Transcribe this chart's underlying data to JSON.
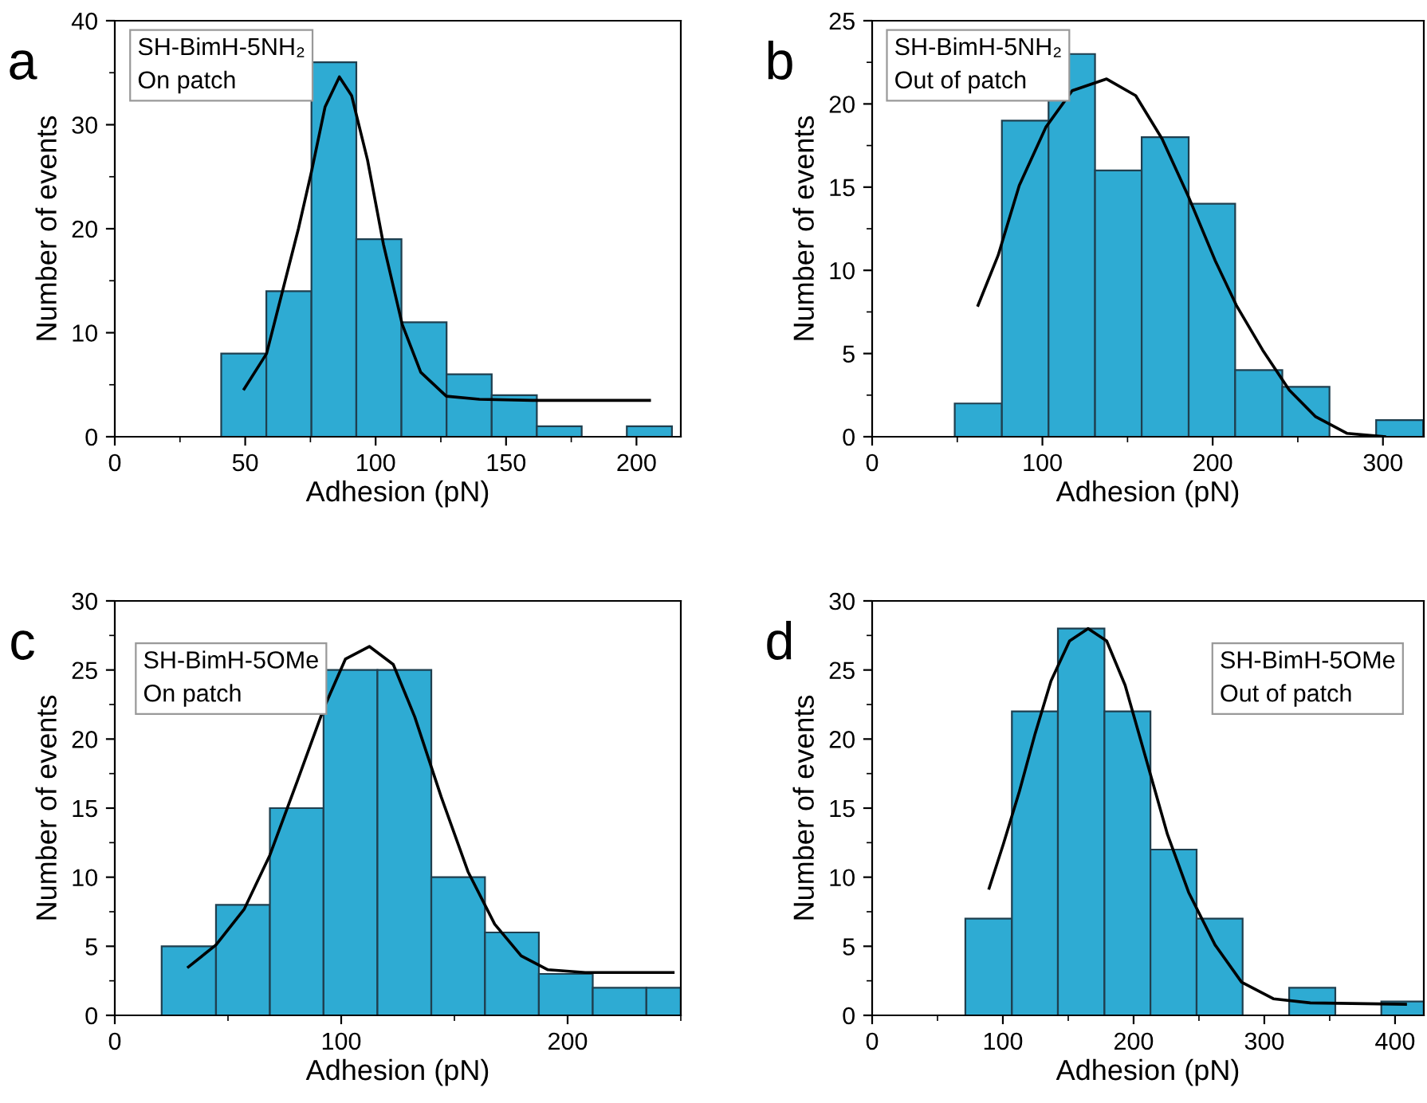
{
  "chart_data": [
    {
      "type": "histogram",
      "title": "a",
      "xlabel": "Adhesion (pN)",
      "ylabel": "Number of events",
      "annotations": [
        "SH-BimH-5NH₂\nOn patch"
      ],
      "bins": [
        40.8,
        58.1,
        75.4,
        92.6,
        109.9,
        127.2,
        144.5,
        161.8,
        179.0,
        196.3,
        213.6
      ],
      "values": [
        8,
        14,
        36,
        19,
        11,
        6,
        4,
        1,
        0,
        1
      ],
      "color": "#2eabd3",
      "series": [
        {
          "type": "line",
          "color": "#000000",
          "x": [
            49.6,
            58.2,
            64.3,
            70.4,
            75.5,
            80.6,
            86.1,
            90.8,
            96.9,
            103.0,
            110.2,
            117.3,
            127.1,
            139.8,
            160.2,
            205.0
          ],
          "values": [
            4.6,
            8.0,
            14.0,
            20.0,
            25.6,
            31.7,
            34.6,
            32.8,
            26.6,
            18.5,
            10.8,
            6.2,
            3.9,
            3.6,
            3.5,
            3.5
          ]
        }
      ],
      "xlim": [
        0,
        217
      ],
      "ylim": [
        0,
        40
      ],
      "xticks": [
        0,
        50,
        100,
        150,
        200
      ],
      "yticks": [
        0,
        10,
        20,
        30,
        40
      ],
      "grid": false,
      "legend": false
    },
    {
      "type": "histogram",
      "title": "b",
      "xlabel": "Adhesion (pN)",
      "ylabel": "Number of events",
      "annotations": [
        "SH-BimH-5NH₂\nOut of patch"
      ],
      "bins": [
        48.5,
        76.2,
        103.6,
        130.9,
        158.3,
        185.9,
        213.2,
        240.9,
        268.6,
        296.0,
        323.6
      ],
      "values": [
        2,
        19,
        23,
        16,
        18,
        14,
        4,
        3,
        0,
        1
      ],
      "color": "#2eabd3",
      "series": [
        {
          "type": "line",
          "color": "#000000",
          "x": [
            62.2,
            74.0,
            86.4,
            102.0,
            117.5,
            137.7,
            154.8,
            170.3,
            185.9,
            201.4,
            213.9,
            229.4,
            245.0,
            260.5,
            279.0,
            301.0
          ],
          "values": [
            7.9,
            10.9,
            15.1,
            18.6,
            20.8,
            21.5,
            20.5,
            17.9,
            14.4,
            10.6,
            7.9,
            5.2,
            2.8,
            1.2,
            0.2,
            0
          ]
        }
      ],
      "xlim": [
        0,
        324
      ],
      "ylim": [
        0,
        25
      ],
      "xticks": [
        0,
        100,
        200,
        300
      ],
      "yticks": [
        0,
        5,
        10,
        15,
        20,
        25
      ],
      "grid": false,
      "legend": false
    },
    {
      "type": "histogram",
      "title": "c",
      "xlabel": "Adhesion (pN)",
      "ylabel": "Number of events",
      "annotations": [
        "SH-BimH-5OMe\nOn patch"
      ],
      "bins": [
        20.7,
        44.7,
        68.5,
        92.2,
        116.0,
        139.8,
        163.5,
        187.3,
        211.1,
        234.8,
        250.0
      ],
      "values": [
        5,
        8,
        15,
        25,
        25,
        10,
        6,
        3,
        2,
        2
      ],
      "color": "#2eabd3",
      "series": [
        {
          "type": "line",
          "color": "#000000",
          "x": [
            32.5,
            44.7,
            57.2,
            68.5,
            80.7,
            92.5,
            101.9,
            112.5,
            123.0,
            132.5,
            144.2,
            156.0,
            167.8,
            179.5,
            191.3,
            207.8,
            246.6
          ],
          "values": [
            3.5,
            5.1,
            7.7,
            11.6,
            17.0,
            22.3,
            25.8,
            26.7,
            25.4,
            21.6,
            15.8,
            10.4,
            6.6,
            4.3,
            3.3,
            3.1,
            3.1
          ]
        }
      ],
      "xlim": [
        0,
        250
      ],
      "ylim": [
        0,
        30
      ],
      "xticks": [
        0,
        100,
        200
      ],
      "yticks": [
        0,
        5,
        10,
        15,
        20,
        25,
        30
      ],
      "grid": false,
      "legend": false
    },
    {
      "type": "histogram",
      "title": "d",
      "xlabel": "Adhesion (pN)",
      "ylabel": "Number of events",
      "annotations": [
        "SH-BimH-5OMe\nOut of patch"
      ],
      "bins": [
        71.3,
        106.9,
        142.1,
        177.7,
        212.9,
        248.2,
        283.4,
        319.0,
        354.3,
        389.5,
        422.0
      ],
      "values": [
        7,
        22,
        28,
        22,
        12,
        7,
        0,
        2,
        0,
        1
      ],
      "color": "#2eabd3",
      "series": [
        {
          "type": "line",
          "color": "#000000",
          "x": [
            89.5,
            100.4,
            112.6,
            124.7,
            136.8,
            151.0,
            165.2,
            179.4,
            193.5,
            209.7,
            225.9,
            242.1,
            262.3,
            282.6,
            306.9,
            335.2,
            408.0
          ],
          "values": [
            9.2,
            12.4,
            16.2,
            20.4,
            24.2,
            27.1,
            28.0,
            27.1,
            23.9,
            18.5,
            13.1,
            8.9,
            5.1,
            2.4,
            1.2,
            0.9,
            0.8
          ]
        }
      ],
      "xlim": [
        0,
        422
      ],
      "ylim": [
        0,
        30
      ],
      "xticks": [
        0,
        100,
        200,
        300,
        400
      ],
      "yticks": [
        0,
        5,
        10,
        15,
        20,
        25,
        30
      ],
      "grid": false,
      "legend": false
    }
  ]
}
